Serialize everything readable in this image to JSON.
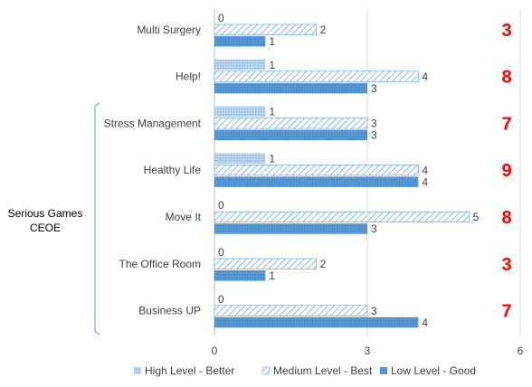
{
  "chart_data": {
    "type": "bar",
    "orientation": "horizontal",
    "categories": [
      "Multi Surgery",
      "Help!",
      "Stress Management",
      "Healthy Life",
      "Move It",
      "The Office Room",
      "Business UP"
    ],
    "series": [
      {
        "name": "High Level - Better",
        "values": [
          0,
          1,
          1,
          1,
          0,
          0,
          0
        ],
        "color": "#9dc3e6",
        "pattern": "light-dots"
      },
      {
        "name": "Medium Level - Best",
        "values": [
          2,
          4,
          3,
          4,
          5,
          2,
          3
        ],
        "color": "#5b9bd5",
        "pattern": "diagonal-hatch"
      },
      {
        "name": "Low Level - Good",
        "values": [
          1,
          3,
          3,
          4,
          3,
          1,
          4
        ],
        "color": "#5b9bd5",
        "pattern": "solid-dots"
      }
    ],
    "totals": [
      3,
      8,
      7,
      9,
      8,
      3,
      7
    ],
    "x_ticks": [
      0,
      3,
      6
    ],
    "xlim": [
      0,
      6
    ],
    "grid": true,
    "legend_position": "bottom",
    "group": {
      "label_line1": "Serious Games",
      "label_line2": "CEOE",
      "categories": [
        "Stress Management",
        "Healthy Life",
        "Move It",
        "The Office Room",
        "Business UP"
      ]
    },
    "colors": {
      "total": "#ff0000",
      "grid": "#d9d9d9"
    }
  }
}
